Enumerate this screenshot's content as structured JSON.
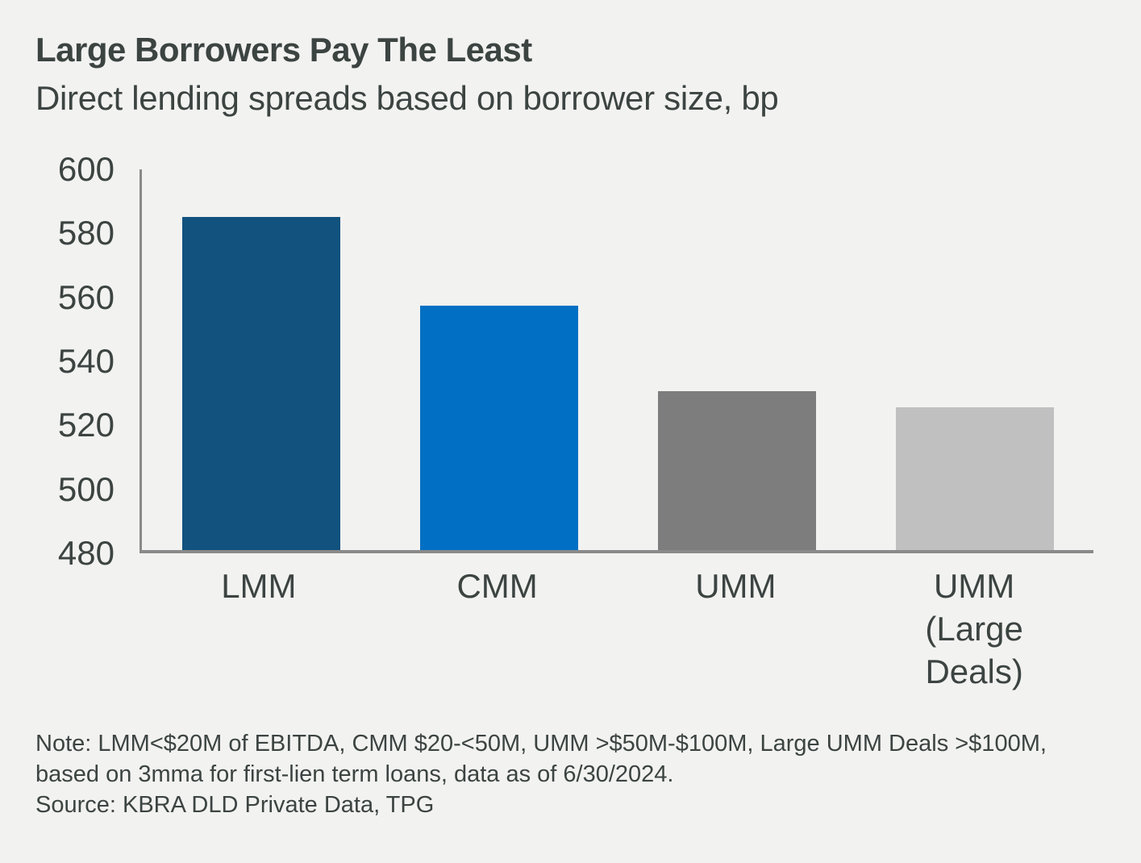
{
  "header": {
    "title": "Large Borrowers Pay The Least",
    "subtitle": "Direct lending spreads based on borrower size, bp"
  },
  "chart_data": {
    "type": "bar",
    "title": "Large Borrowers Pay The Least",
    "subtitle": "Direct lending spreads based on borrower size, bp",
    "categories": [
      "LMM",
      "CMM",
      "UMM",
      "UMM (Large Deals)"
    ],
    "values": [
      585,
      557,
      530,
      525
    ],
    "unit": "bp",
    "xlabel": "",
    "ylabel": "",
    "ylim": [
      480,
      600
    ],
    "yticks": [
      480,
      500,
      520,
      540,
      560,
      580,
      600
    ],
    "grid": false,
    "legend": false,
    "bar_colors": [
      "#12527f",
      "#0170c4",
      "#7d7d7d",
      "#c0c0c0"
    ]
  },
  "colors": {
    "background": "#f2f2f1",
    "text": "#3c4442",
    "axis": "#8a8a8a"
  },
  "footnote": {
    "note": "Note: LMM<$20M of EBITDA, CMM $20-<50M, UMM >$50M-$100M, Large UMM Deals >$100M, based on 3mma for first-lien term loans, data as of 6/30/2024.",
    "source": "Source: KBRA DLD Private Data, TPG"
  }
}
